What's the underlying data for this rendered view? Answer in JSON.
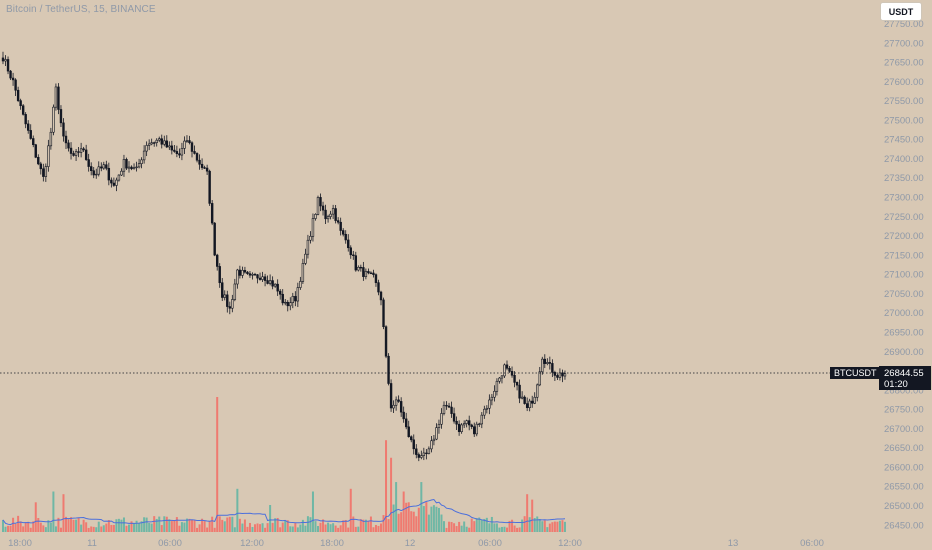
{
  "header": {
    "title": "Bitcoin / TetherUS, 15, BINANCE",
    "currency_button": "USDT"
  },
  "price_marker": {
    "symbol": "BTCUSDT",
    "price": "26844.55",
    "countdown": "01:20"
  },
  "colors": {
    "background": "#d8c8b4",
    "candle": "#131722",
    "volume_up": "#6fb7a5",
    "volume_down": "#ef7a70",
    "volume_ma": "#4b6fdc",
    "axis_text": "#8f99a8"
  },
  "chart_data": {
    "type": "candlestick",
    "title": "Bitcoin / TetherUS, 15, BINANCE",
    "ylim": [
      26425,
      27775
    ],
    "y_ticks": [
      "27750.00",
      "27700.00",
      "27650.00",
      "27600.00",
      "27550.00",
      "27500.00",
      "27450.00",
      "27400.00",
      "27350.00",
      "27300.00",
      "27250.00",
      "27200.00",
      "27150.00",
      "27100.00",
      "27050.00",
      "27000.00",
      "26950.00",
      "26900.00",
      "26850.00",
      "26800.00",
      "26750.00",
      "26700.00",
      "26650.00",
      "26600.00",
      "26550.00",
      "26500.00",
      "26450.00"
    ],
    "x_ticks": [
      "18:00",
      "11",
      "06:00",
      "12:00",
      "18:00",
      "12",
      "06:00",
      "12:00",
      "13",
      "06:00"
    ],
    "close_path": [
      {
        "i": 0,
        "p": 27665
      },
      {
        "i": 4,
        "p": 27600
      },
      {
        "i": 8,
        "p": 27510
      },
      {
        "i": 13,
        "p": 27410
      },
      {
        "i": 16,
        "p": 27350
      },
      {
        "i": 19,
        "p": 27470
      },
      {
        "i": 21,
        "p": 27580
      },
      {
        "i": 24,
        "p": 27450
      },
      {
        "i": 28,
        "p": 27400
      },
      {
        "i": 31,
        "p": 27430
      },
      {
        "i": 36,
        "p": 27360
      },
      {
        "i": 40,
        "p": 27380
      },
      {
        "i": 44,
        "p": 27330
      },
      {
        "i": 48,
        "p": 27390
      },
      {
        "i": 53,
        "p": 27370
      },
      {
        "i": 57,
        "p": 27440
      },
      {
        "i": 62,
        "p": 27450
      },
      {
        "i": 67,
        "p": 27420
      },
      {
        "i": 70,
        "p": 27410
      },
      {
        "i": 73,
        "p": 27450
      },
      {
        "i": 77,
        "p": 27400
      },
      {
        "i": 81,
        "p": 27360
      },
      {
        "i": 84,
        "p": 27160
      },
      {
        "i": 87,
        "p": 27050
      },
      {
        "i": 90,
        "p": 27010
      },
      {
        "i": 93,
        "p": 27110
      },
      {
        "i": 98,
        "p": 27090
      },
      {
        "i": 103,
        "p": 27100
      },
      {
        "i": 108,
        "p": 27070
      },
      {
        "i": 112,
        "p": 27020
      },
      {
        "i": 116,
        "p": 27040
      },
      {
        "i": 119,
        "p": 27120
      },
      {
        "i": 122,
        "p": 27210
      },
      {
        "i": 125,
        "p": 27290
      },
      {
        "i": 128,
        "p": 27250
      },
      {
        "i": 131,
        "p": 27270
      },
      {
        "i": 134,
        "p": 27210
      },
      {
        "i": 137,
        "p": 27180
      },
      {
        "i": 140,
        "p": 27120
      },
      {
        "i": 144,
        "p": 27100
      },
      {
        "i": 147,
        "p": 27090
      },
      {
        "i": 150,
        "p": 27040
      },
      {
        "i": 152,
        "p": 26880
      },
      {
        "i": 154,
        "p": 26760
      },
      {
        "i": 157,
        "p": 26770
      },
      {
        "i": 160,
        "p": 26700
      },
      {
        "i": 163,
        "p": 26650
      },
      {
        "i": 166,
        "p": 26620
      },
      {
        "i": 169,
        "p": 26640
      },
      {
        "i": 172,
        "p": 26700
      },
      {
        "i": 175,
        "p": 26760
      },
      {
        "i": 178,
        "p": 26740
      },
      {
        "i": 181,
        "p": 26700
      },
      {
        "i": 184,
        "p": 26720
      },
      {
        "i": 187,
        "p": 26690
      },
      {
        "i": 190,
        "p": 26740
      },
      {
        "i": 193,
        "p": 26770
      },
      {
        "i": 196,
        "p": 26820
      },
      {
        "i": 199,
        "p": 26860
      },
      {
        "i": 202,
        "p": 26830
      },
      {
        "i": 205,
        "p": 26790
      },
      {
        "i": 208,
        "p": 26750
      },
      {
        "i": 211,
        "p": 26790
      },
      {
        "i": 214,
        "p": 26890
      },
      {
        "i": 217,
        "p": 26860
      },
      {
        "i": 220,
        "p": 26840
      },
      {
        "i": 223,
        "p": 26844
      }
    ],
    "volume_spikes": [
      {
        "i": 85,
        "v": 1.0
      },
      {
        "i": 152,
        "v": 0.68
      },
      {
        "i": 154,
        "v": 0.55
      },
      {
        "i": 156,
        "v": 0.37
      },
      {
        "i": 166,
        "v": 0.37
      },
      {
        "i": 138,
        "v": 0.32
      },
      {
        "i": 93,
        "v": 0.32
      },
      {
        "i": 20,
        "v": 0.3
      },
      {
        "i": 24,
        "v": 0.28
      },
      {
        "i": 123,
        "v": 0.3
      },
      {
        "i": 208,
        "v": 0.28
      },
      {
        "i": 210,
        "v": 0.24
      },
      {
        "i": 159,
        "v": 0.3
      },
      {
        "i": 106,
        "v": 0.2
      },
      {
        "i": 13,
        "v": 0.22
      }
    ]
  }
}
